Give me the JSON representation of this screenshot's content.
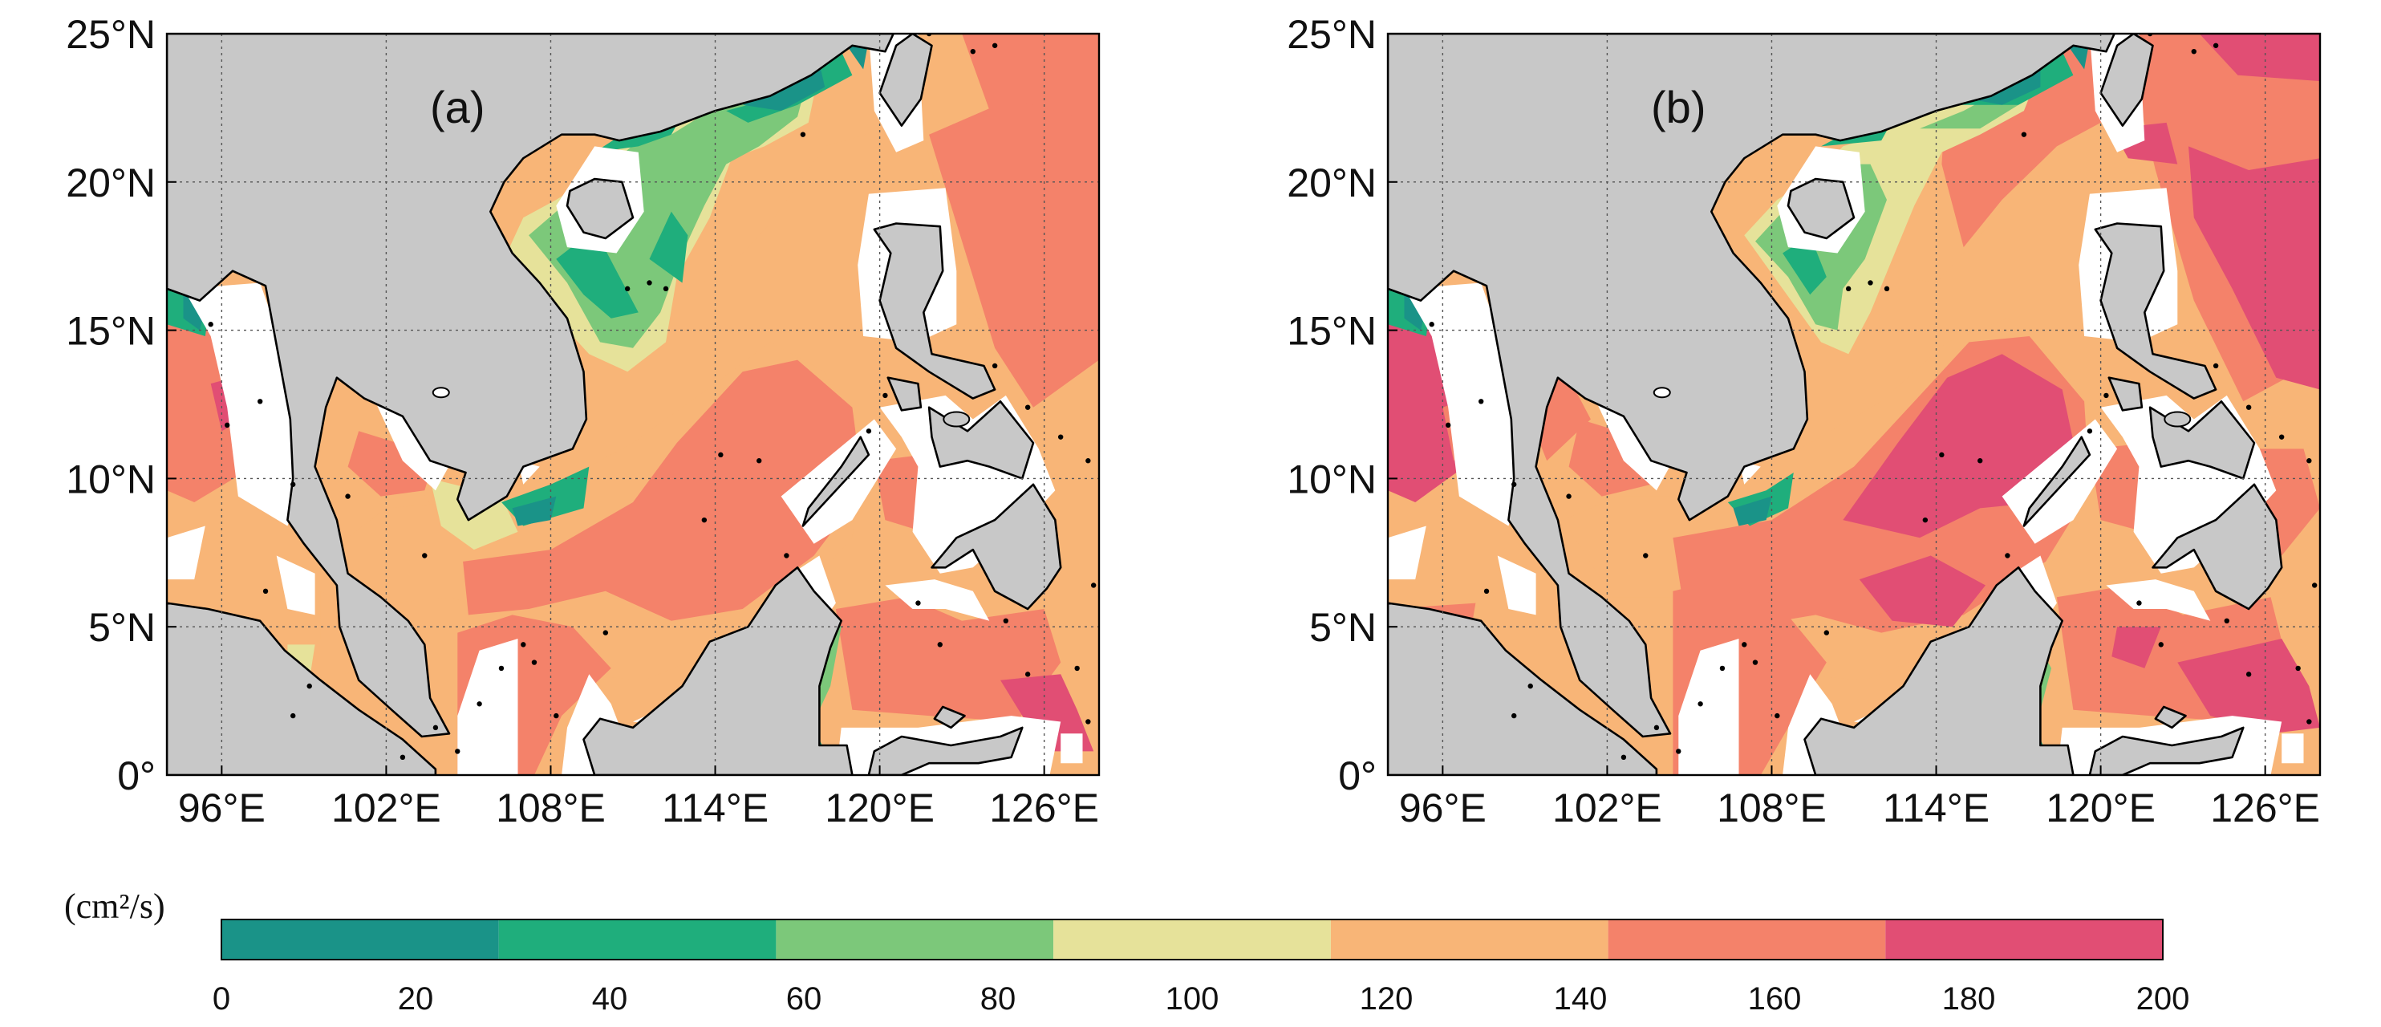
{
  "panels": [
    {
      "id": "a",
      "label": "(a)",
      "lon_range": [
        94,
        128
      ],
      "lat_range": [
        0,
        25
      ],
      "lon_ticks": [
        96,
        102,
        108,
        114,
        120,
        126
      ],
      "lat_ticks": [
        0,
        5,
        10,
        15,
        20,
        25
      ],
      "lon_tick_labels": [
        "96°E",
        "102°E",
        "108°E",
        "114°E",
        "120°E",
        "126°E"
      ],
      "lat_tick_labels": [
        "0°",
        "5°N",
        "10°N",
        "15°N",
        "20°N",
        "25°N"
      ],
      "gridlines": true
    },
    {
      "id": "b",
      "label": "(b)",
      "lon_range": [
        94,
        128
      ],
      "lat_range": [
        0,
        25
      ],
      "lon_ticks": [
        96,
        102,
        108,
        114,
        120,
        126
      ],
      "lat_ticks": [
        0,
        5,
        10,
        15,
        20,
        25
      ],
      "lon_tick_labels": [
        "96°E",
        "102°E",
        "108°E",
        "114°E",
        "120°E",
        "126°E"
      ],
      "lat_tick_labels": [
        "0°",
        "5°N",
        "10°N",
        "15°N",
        "20°N",
        "25°N"
      ],
      "gridlines": true
    }
  ],
  "colorbar": {
    "unit_label": "(cm²/s)",
    "range": [
      0,
      200
    ],
    "boundaries": [
      0,
      28.57,
      57.14,
      85.71,
      114.29,
      142.86,
      171.43,
      200
    ],
    "tick_values": [
      0,
      20,
      40,
      60,
      80,
      100,
      120,
      140,
      160,
      180,
      200
    ],
    "tick_labels": [
      "0",
      "20",
      "40",
      "60",
      "80",
      "100",
      "120",
      "140",
      "160",
      "180",
      "200"
    ],
    "colors": [
      "#1a9388",
      "#1fae7c",
      "#7cc87a",
      "#e6e29a",
      "#f8b577",
      "#f4826a",
      "#e14e74"
    ]
  },
  "land_color": "#c8c8c8",
  "nodata_color": "#ffffff"
}
